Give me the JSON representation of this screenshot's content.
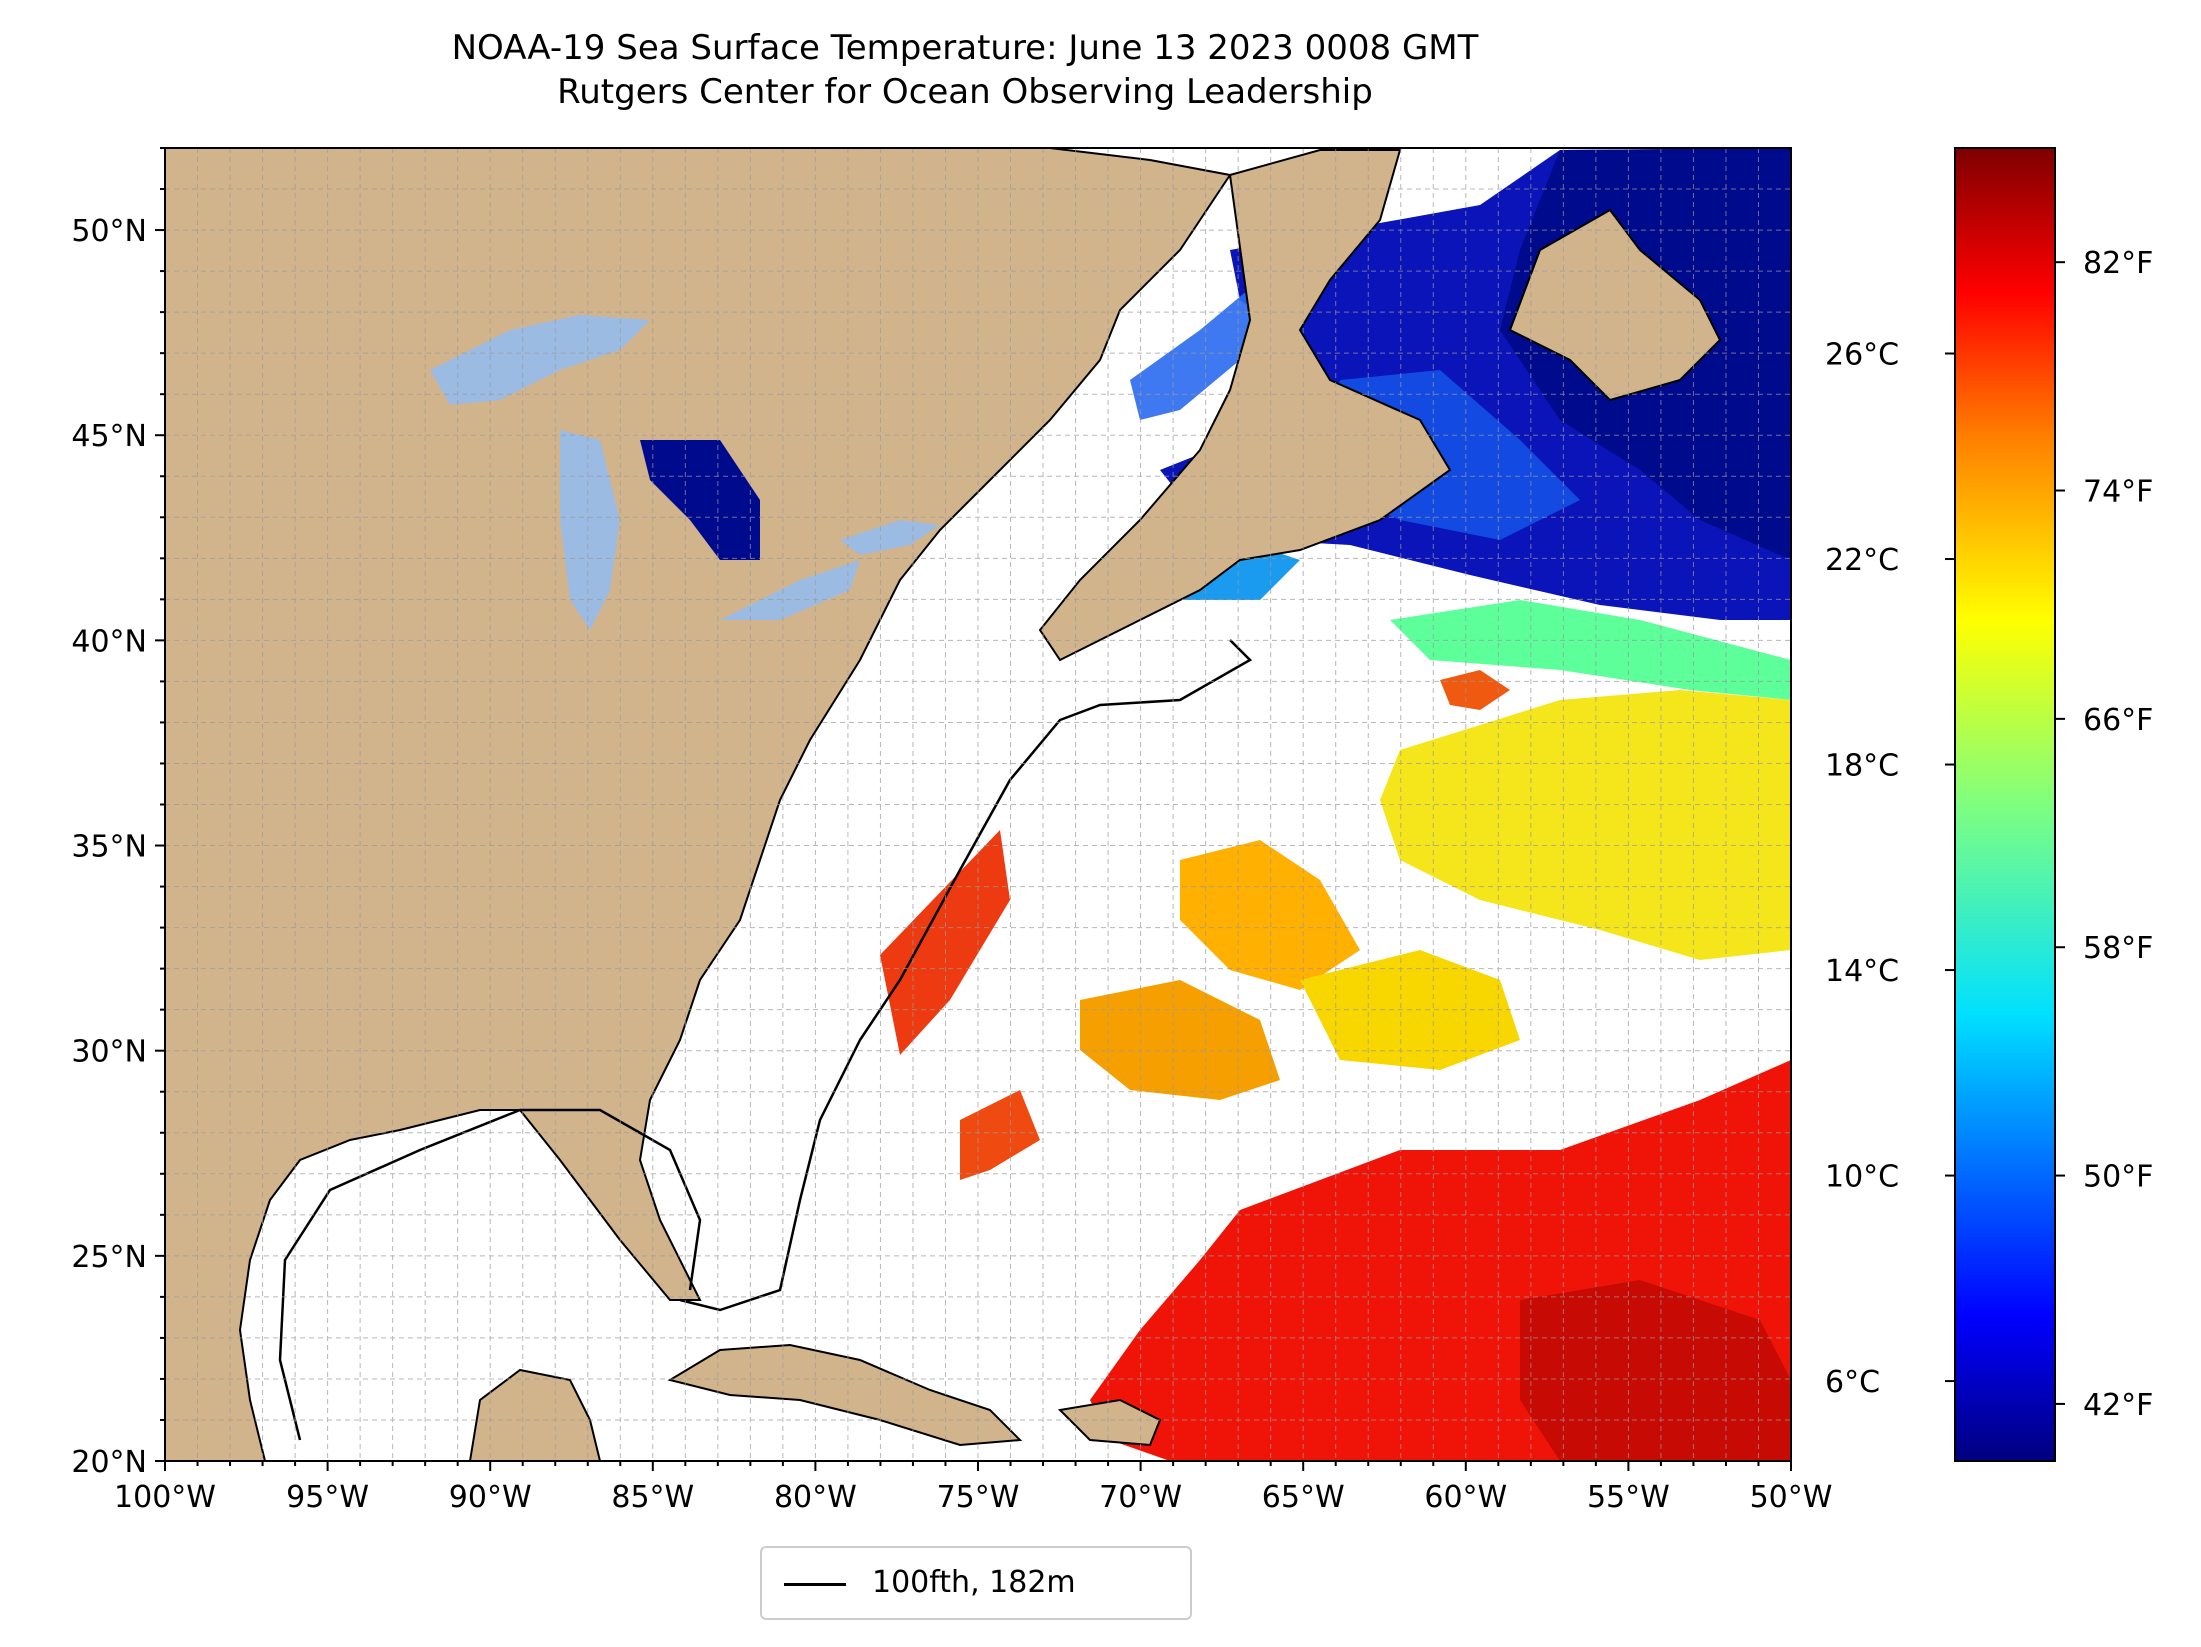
{
  "title": {
    "line1": "NOAA-19 Sea Surface Temperature: June 13 2023 0008 GMT",
    "line2": "Rutgers Center for Ocean Observing Leadership"
  },
  "map": {
    "lon_ticks": [
      {
        "value": -100,
        "label": "100°W"
      },
      {
        "value": -95,
        "label": "95°W"
      },
      {
        "value": -90,
        "label": "90°W"
      },
      {
        "value": -85,
        "label": "85°W"
      },
      {
        "value": -80,
        "label": "80°W"
      },
      {
        "value": -75,
        "label": "75°W"
      },
      {
        "value": -70,
        "label": "70°W"
      },
      {
        "value": -65,
        "label": "65°W"
      },
      {
        "value": -60,
        "label": "60°W"
      },
      {
        "value": -55,
        "label": "55°W"
      },
      {
        "value": -50,
        "label": "50°W"
      }
    ],
    "lat_ticks": [
      {
        "value": 20,
        "label": "20°N"
      },
      {
        "value": 25,
        "label": "25°N"
      },
      {
        "value": 30,
        "label": "30°N"
      },
      {
        "value": 35,
        "label": "35°N"
      },
      {
        "value": 40,
        "label": "40°N"
      },
      {
        "value": 45,
        "label": "45°N"
      },
      {
        "value": 50,
        "label": "50°N"
      }
    ],
    "lon_range": [
      -100,
      -50
    ],
    "lat_range": [
      20,
      52
    ],
    "gridlines": true,
    "colors": {
      "land": "#d2b48c",
      "lakes": "#9cbbe2",
      "no_data": "#ffffff"
    }
  },
  "colorbar": {
    "celsius_ticks": [
      {
        "value": 6,
        "label": "6°C"
      },
      {
        "value": 10,
        "label": "10°C"
      },
      {
        "value": 14,
        "label": "14°C"
      },
      {
        "value": 18,
        "label": "18°C"
      },
      {
        "value": 22,
        "label": "22°C"
      },
      {
        "value": 26,
        "label": "26°C"
      }
    ],
    "fahrenheit_ticks": [
      {
        "value": 42,
        "label": "42°F"
      },
      {
        "value": 50,
        "label": "50°F"
      },
      {
        "value": 58,
        "label": "58°F"
      },
      {
        "value": 66,
        "label": "66°F"
      },
      {
        "value": 74,
        "label": "74°F"
      },
      {
        "value": 82,
        "label": "82°F"
      }
    ],
    "range_f": [
      40,
      86
    ],
    "colormap": [
      "#00007f",
      "#0000ff",
      "#007fff",
      "#00ffff",
      "#7fff7f",
      "#ffff00",
      "#ff7f00",
      "#ff0000",
      "#7f0000"
    ]
  },
  "legend": {
    "label": "100fth, 182m"
  }
}
